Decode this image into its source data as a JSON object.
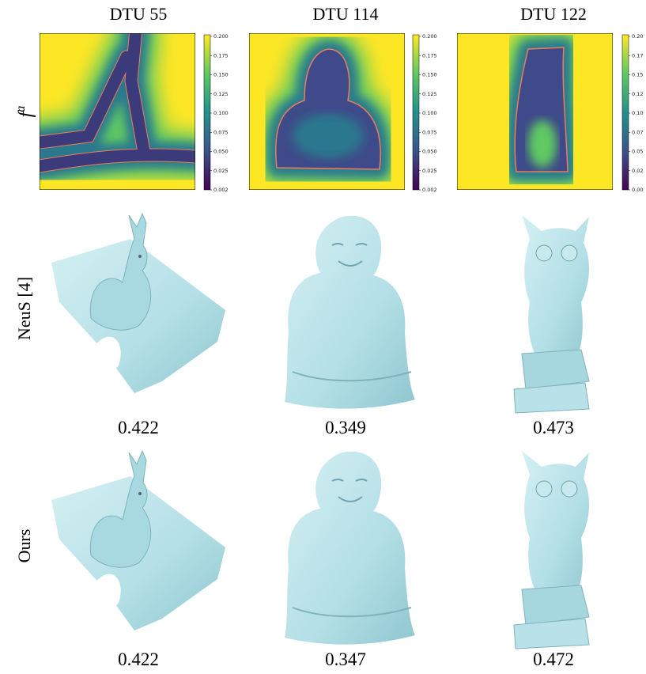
{
  "columns": [
    {
      "title": "DTU 55",
      "colorbar_ticks": [
        "0.200",
        "0.175",
        "0.150",
        "0.125",
        "0.100",
        "0.075",
        "0.050",
        "0.025",
        "0.002"
      ]
    },
    {
      "title": "DTU 114",
      "colorbar_ticks": [
        "0.200",
        "0.175",
        "0.150",
        "0.125",
        "0.100",
        "0.075",
        "0.050",
        "0.025",
        "0.002"
      ]
    },
    {
      "title": "DTU 122",
      "colorbar_ticks": [
        "0.20",
        "0.17",
        "0.15",
        "0.12",
        "0.10",
        "0.07",
        "0.05",
        "0.02",
        "0.00"
      ]
    }
  ],
  "rows": {
    "field": {
      "base": "f",
      "sup": "a"
    },
    "neus": {
      "label": "NeuS [4]",
      "scores": [
        "0.422",
        "0.349",
        "0.473"
      ]
    },
    "ours": {
      "label": "Ours",
      "scores": [
        "0.422",
        "0.347",
        "0.472"
      ]
    }
  }
}
